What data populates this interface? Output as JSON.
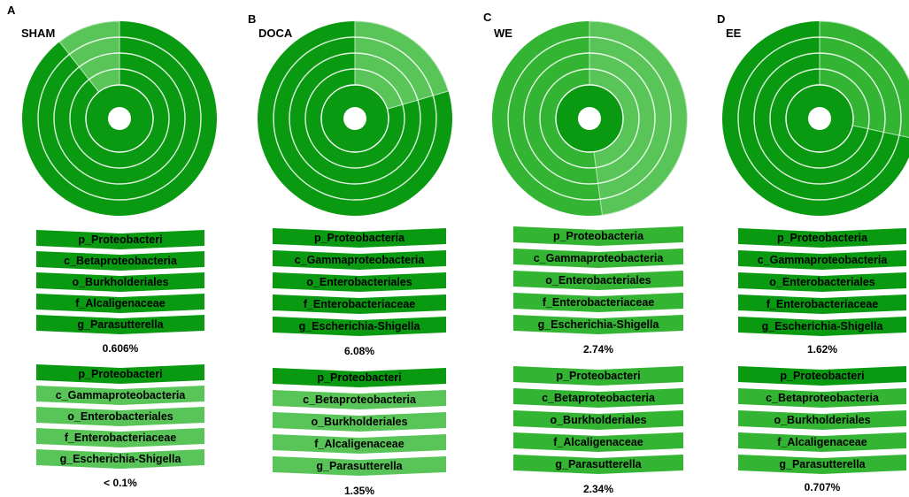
{
  "colors": {
    "dark": "#0a9a12",
    "mid": "#33b433",
    "light": "#59c559",
    "bg": "#ffffff"
  },
  "panels": [
    {
      "letter": "A",
      "label": "SHAM",
      "top": {
        "taxa": [
          "p_Proteobacteri",
          "c_Betaproteobacteria",
          "o_Burkholderiales",
          "f_Alcaligenaceae",
          "g_Parasutterella"
        ],
        "abundance": "0.606%",
        "shade": "dark"
      },
      "bottom": {
        "taxa": [
          "p_Proteobacteri",
          "c_Gammaproteobacteria",
          "o_Enterobacteriales",
          "f_Enterobacteriaceae",
          "g_Escherichia-Shigella"
        ],
        "abundance": "< 0.1%",
        "shade": "light"
      }
    },
    {
      "letter": "B",
      "label": "DOCA",
      "top": {
        "taxa": [
          "p_Proteobacteria",
          "c_Gammaproteobacteria",
          "o_Enterobacteriales",
          "f_Enterobacteriaceae",
          "g_Escherichia-Shigella"
        ],
        "abundance": "6.08%",
        "shade": "dark"
      },
      "bottom": {
        "taxa": [
          "p_Proteobacteri",
          "c_Betaproteobacteria",
          "o_Burkholderiales",
          "f_Alcaligenaceae",
          "g_Parasutterella"
        ],
        "abundance": "1.35%",
        "shade": "light"
      }
    },
    {
      "letter": "C",
      "label": "WE",
      "top": {
        "taxa": [
          "p_Proteobacteria",
          "c_Gammaproteobacteria",
          "o_Enterobacteriales",
          "f_Enterobacteriaceae",
          "g_Escherichia-Shigella"
        ],
        "abundance": "2.74%",
        "shade": "mid"
      },
      "bottom": {
        "taxa": [
          "p_Proteobacteri",
          "c_Betaproteobacteria",
          "o_Burkholderiales",
          "f_Alcaligenaceae",
          "g_Parasutterella"
        ],
        "abundance": "2.34%",
        "shade": "mid"
      }
    },
    {
      "letter": "D",
      "label": "EE",
      "top": {
        "taxa": [
          "p_Proteobacteria",
          "c_Gammaproteobacteria",
          "o_Enterobacteriales",
          "f_Enterobacteriaceae",
          "g_Escherichia-Shigella"
        ],
        "abundance": "1.62%",
        "shade": "dark"
      },
      "bottom": {
        "taxa": [
          "p_Proteobacteri",
          "c_Betaproteobacteria",
          "o_Burkholderiales",
          "f_Alcaligenaceae",
          "g_Parasutterella"
        ],
        "abundance": "0.707%",
        "shade": "mid"
      }
    }
  ]
}
